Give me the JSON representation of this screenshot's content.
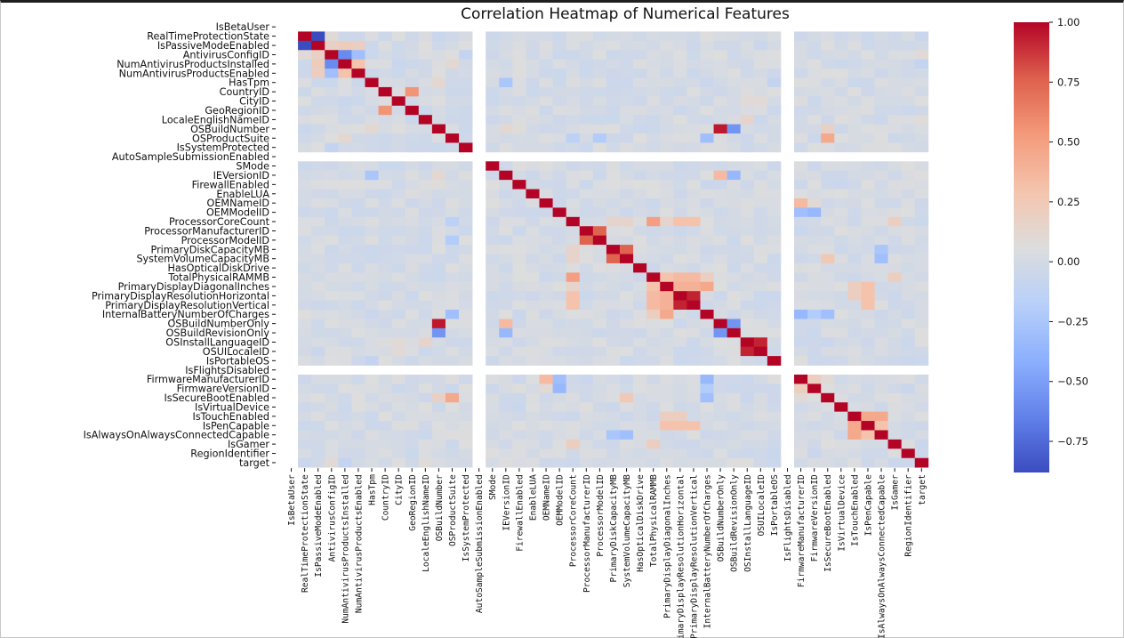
{
  "chart_data": {
    "type": "heatmap",
    "title": "Correlation Heatmap of Numerical Features",
    "labels": [
      "IsBetaUser",
      "RealTimeProtectionState",
      "IsPassiveModeEnabled",
      "AntivirusConfigID",
      "NumAntivirusProductsInstalled",
      "NumAntivirusProductsEnabled",
      "HasTpm",
      "CountryID",
      "CityID",
      "GeoRegionID",
      "LocaleEnglishNameID",
      "OSBuildNumber",
      "OSProductSuite",
      "IsSystemProtected",
      "AutoSampleSubmissionEnabled",
      "SMode",
      "IEVersionID",
      "FirewallEnabled",
      "EnableLUA",
      "OEMNameID",
      "OEMModelID",
      "ProcessorCoreCount",
      "ProcessorManufacturerID",
      "ProcessorModelID",
      "PrimaryDiskCapacityMB",
      "SystemVolumeCapacityMB",
      "HasOpticalDiskDrive",
      "TotalPhysicalRAMMB",
      "PrimaryDisplayDiagonalInches",
      "PrimaryDisplayResolutionHorizontal",
      "PrimaryDisplayResolutionVertical",
      "InternalBatteryNumberOfCharges",
      "OSBuildNumberOnly",
      "OSBuildRevisionOnly",
      "OSInstallLanguageID",
      "OSUILocaleID",
      "IsPortableOS",
      "IsFlightsDisabled",
      "FirmwareManufacturerID",
      "FirmwareVersionID",
      "IsSecureBootEnabled",
      "IsVirtualDevice",
      "IsTouchEnabled",
      "IsPenCapable",
      "IsAlwaysOnAlwaysConnectedCapable",
      "IsGamer",
      "RegionIdentifier",
      "target"
    ],
    "undefined_features": [
      "IsBetaUser",
      "AutoSampleSubmissionEnabled",
      "IsFlightsDisabled"
    ],
    "pairs": [
      [
        "RealTimeProtectionState",
        "IsPassiveModeEnabled",
        -0.9
      ],
      [
        "RealTimeProtectionState",
        "AntivirusConfigID",
        0.1
      ],
      [
        "RealTimeProtectionState",
        "NumAntivirusProductsInstalled",
        -0.05
      ],
      [
        "IsPassiveModeEnabled",
        "AntivirusConfigID",
        0.18
      ],
      [
        "IsPassiveModeEnabled",
        "NumAntivirusProductsInstalled",
        0.22
      ],
      [
        "IsPassiveModeEnabled",
        "NumAntivirusProductsEnabled",
        0.2
      ],
      [
        "AntivirusConfigID",
        "NumAntivirusProductsInstalled",
        -0.6
      ],
      [
        "AntivirusConfigID",
        "NumAntivirusProductsEnabled",
        -0.3
      ],
      [
        "AntivirusConfigID",
        "IsSystemProtected",
        -0.1
      ],
      [
        "NumAntivirusProductsInstalled",
        "NumAntivirusProductsEnabled",
        0.3
      ],
      [
        "NumAntivirusProductsInstalled",
        "OSProductSuite",
        0.12
      ],
      [
        "CountryID",
        "GeoRegionID",
        0.55
      ],
      [
        "OSBuildNumber",
        "OSBuildNumberOnly",
        0.95
      ],
      [
        "OSBuildNumber",
        "OSBuildRevisionOnly",
        -0.55
      ],
      [
        "OSBuildNumber",
        "HasTpm",
        0.12
      ],
      [
        "OSBuildNumber",
        "IEVersionID",
        0.12
      ],
      [
        "OSBuildNumber",
        "FirewallEnabled",
        0.08
      ],
      [
        "OSBuildNumber",
        "IsSecureBootEnabled",
        0.18
      ],
      [
        "OSProductSuite",
        "IsSecureBootEnabled",
        0.45
      ],
      [
        "OSProductSuite",
        "ProcessorCoreCount",
        -0.15
      ],
      [
        "OSProductSuite",
        "ProcessorModelID",
        -0.2
      ],
      [
        "OSProductSuite",
        "InternalBatteryNumberOfCharges",
        -0.3
      ],
      [
        "OSProductSuite",
        "OSBuildNumberOnly",
        0.05
      ],
      [
        "HasTpm",
        "IEVersionID",
        -0.25
      ],
      [
        "HasTpm",
        "IsPortableOS",
        -0.1
      ],
      [
        "IEVersionID",
        "OSBuildNumberOnly",
        0.35
      ],
      [
        "IEVersionID",
        "OSBuildRevisionOnly",
        -0.35
      ],
      [
        "OEMNameID",
        "FirmwareManufacturerID",
        0.35
      ],
      [
        "OEMNameID",
        "FirmwareVersionID",
        0.1
      ],
      [
        "OEMModelID",
        "FirmwareManufacturerID",
        -0.3
      ],
      [
        "OEMModelID",
        "FirmwareVersionID",
        -0.35
      ],
      [
        "ProcessorCoreCount",
        "TotalPhysicalRAMMB",
        0.5
      ],
      [
        "ProcessorCoreCount",
        "PrimaryDisplayResolutionHorizontal",
        0.3
      ],
      [
        "ProcessorCoreCount",
        "PrimaryDisplayResolutionVertical",
        0.3
      ],
      [
        "ProcessorCoreCount",
        "PrimaryDiskCapacityMB",
        0.15
      ],
      [
        "ProcessorCoreCount",
        "SystemVolumeCapacityMB",
        0.15
      ],
      [
        "ProcessorCoreCount",
        "PrimaryDisplayDiagonalInches",
        0.15
      ],
      [
        "ProcessorCoreCount",
        "IsGamer",
        0.2
      ],
      [
        "ProcessorManufacturerID",
        "ProcessorModelID",
        0.75
      ],
      [
        "PrimaryDiskCapacityMB",
        "SystemVolumeCapacityMB",
        0.75
      ],
      [
        "PrimaryDiskCapacityMB",
        "IsAlwaysOnAlwaysConnectedCapable",
        -0.25
      ],
      [
        "SystemVolumeCapacityMB",
        "IsSecureBootEnabled",
        0.25
      ],
      [
        "SystemVolumeCapacityMB",
        "IsAlwaysOnAlwaysConnectedCapable",
        -0.3
      ],
      [
        "TotalPhysicalRAMMB",
        "PrimaryDisplayDiagonalInches",
        0.3
      ],
      [
        "TotalPhysicalRAMMB",
        "PrimaryDisplayResolutionHorizontal",
        0.35
      ],
      [
        "TotalPhysicalRAMMB",
        "PrimaryDisplayResolutionVertical",
        0.35
      ],
      [
        "TotalPhysicalRAMMB",
        "InternalBatteryNumberOfCharges",
        0.2
      ],
      [
        "TotalPhysicalRAMMB",
        "IsGamer",
        0.2
      ],
      [
        "PrimaryDisplayDiagonalInches",
        "PrimaryDisplayResolutionHorizontal",
        0.4
      ],
      [
        "PrimaryDisplayDiagonalInches",
        "PrimaryDisplayResolutionVertical",
        0.4
      ],
      [
        "PrimaryDisplayDiagonalInches",
        "InternalBatteryNumberOfCharges",
        0.45
      ],
      [
        "PrimaryDisplayDiagonalInches",
        "IsTouchEnabled",
        0.2
      ],
      [
        "PrimaryDisplayDiagonalInches",
        "IsPenCapable",
        0.3
      ],
      [
        "PrimaryDisplayResolutionHorizontal",
        "PrimaryDisplayResolutionVertical",
        0.92
      ],
      [
        "PrimaryDisplayResolutionHorizontal",
        "IsPenCapable",
        0.3
      ],
      [
        "PrimaryDisplayResolutionHorizontal",
        "IsTouchEnabled",
        0.2
      ],
      [
        "PrimaryDisplayResolutionVertical",
        "IsPenCapable",
        0.3
      ],
      [
        "InternalBatteryNumberOfCharges",
        "FirmwareManufacturerID",
        -0.35
      ],
      [
        "InternalBatteryNumberOfCharges",
        "FirmwareVersionID",
        -0.2
      ],
      [
        "InternalBatteryNumberOfCharges",
        "IsSecureBootEnabled",
        -0.3
      ],
      [
        "OSBuildNumberOnly",
        "OSBuildRevisionOnly",
        -0.55
      ],
      [
        "OSInstallLanguageID",
        "OSUILocaleID",
        0.92
      ],
      [
        "OSInstallLanguageID",
        "CityID",
        0.1
      ],
      [
        "OSUILocaleID",
        "CityID",
        0.1
      ],
      [
        "OSInstallLanguageID",
        "LocaleEnglishNameID",
        0.15
      ],
      [
        "FirmwareManufacturerID",
        "FirmwareVersionID",
        0.2
      ],
      [
        "FirmwareManufacturerID",
        "IsSecureBootEnabled",
        0.1
      ],
      [
        "IsTouchEnabled",
        "IsPenCapable",
        0.45
      ],
      [
        "IsTouchEnabled",
        "IsAlwaysOnAlwaysConnectedCapable",
        0.45
      ],
      [
        "IsPenCapable",
        "IsAlwaysOnAlwaysConnectedCapable",
        0.3
      ],
      [
        "IsGamer",
        "RegionIdentifier",
        0.05
      ],
      [
        "target",
        "AntivirusConfigID",
        0.1
      ],
      [
        "target",
        "NumAntivirusProductsInstalled",
        -0.1
      ],
      [
        "target",
        "LocaleEnglishNameID",
        0.08
      ],
      [
        "target",
        "OSBuildNumber",
        0.03
      ]
    ],
    "vmin": -0.88,
    "vmax": 1.0,
    "colormap": "coolwarm",
    "colorbar_ticks": [
      1.0,
      0.75,
      0.5,
      0.25,
      0.0,
      -0.25,
      -0.5,
      -0.75
    ],
    "colorbar_tick_labels": [
      "1.00",
      "0.75",
      "0.50",
      "0.25",
      "0.00",
      "−0.25",
      "−0.50",
      "−0.75"
    ],
    "nan_color": "#ffffff"
  }
}
